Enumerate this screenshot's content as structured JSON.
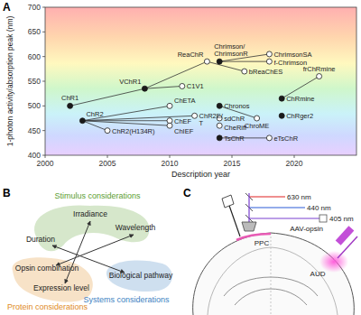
{
  "chart_data": {
    "type": "scatter",
    "panel_label": "A",
    "x_label": "Description year",
    "y_label": "1-photon activity/absorption peak (nm)",
    "xlim": [
      2000,
      2025
    ],
    "xticks": [
      2000,
      2005,
      2010,
      2015,
      2020
    ],
    "ylim": [
      400,
      700
    ],
    "yticks": [
      400,
      450,
      500,
      550,
      600,
      650,
      700
    ],
    "points": [
      {
        "label": "ChR1",
        "x": 2002,
        "y": 500,
        "marker": "filled"
      },
      {
        "label": "ChR2",
        "x": 2003,
        "y": 470,
        "marker": "filled"
      },
      {
        "label": "ChR2(H134R)",
        "x": 2005,
        "y": 450,
        "marker": "open"
      },
      {
        "label": "VChR1",
        "x": 2008,
        "y": 535,
        "marker": "filled"
      },
      {
        "label": "ChETA",
        "x": 2010,
        "y": 500,
        "marker": "open"
      },
      {
        "label": "C1V1",
        "x": 2011,
        "y": 540,
        "marker": "open"
      },
      {
        "label": "ChEF",
        "x": 2010,
        "y": 470,
        "marker": "open"
      },
      {
        "label": "ChIEF",
        "x": 2010,
        "y": 460,
        "marker": "open"
      },
      {
        "label": "ChR2E/T",
        "x": 2012,
        "y": 480,
        "marker": "open"
      },
      {
        "label": "ReaChR",
        "x": 2013,
        "y": 590,
        "marker": "open"
      },
      {
        "label": "Chrimson/ChrimsonR",
        "x": 2014,
        "y": 590,
        "marker": "filled"
      },
      {
        "label": "bReaChES",
        "x": 2016,
        "y": 570,
        "marker": "open"
      },
      {
        "label": "ChrimsonSA",
        "x": 2018,
        "y": 605,
        "marker": "open"
      },
      {
        "label": "f-Chrimson",
        "x": 2018,
        "y": 590,
        "marker": "open"
      },
      {
        "label": "Chronos",
        "x": 2014,
        "y": 500,
        "marker": "filled"
      },
      {
        "label": "sdChR",
        "x": 2014,
        "y": 475,
        "marker": "open"
      },
      {
        "label": "CheRiff",
        "x": 2014,
        "y": 460,
        "marker": "open"
      },
      {
        "label": "TsChR",
        "x": 2014,
        "y": 435,
        "marker": "filled"
      },
      {
        "label": "ChroME",
        "x": 2017,
        "y": 475,
        "marker": "open"
      },
      {
        "label": "eTsChR",
        "x": 2018,
        "y": 435,
        "marker": "open"
      },
      {
        "label": "ChRmine",
        "x": 2019,
        "y": 515,
        "marker": "filled"
      },
      {
        "label": "ChRger2",
        "x": 2019,
        "y": 480,
        "marker": "filled"
      },
      {
        "label": "frChRmine",
        "x": 2022,
        "y": 560,
        "marker": "open"
      }
    ],
    "links": [
      [
        "ChR1",
        "VChR1"
      ],
      [
        "VChR1",
        "C1V1"
      ],
      [
        "VChR1",
        "ReaChR"
      ],
      [
        "ReaChR",
        "bReaChES"
      ],
      [
        "Chrimson/ChrimsonR",
        "ChrimsonSA"
      ],
      [
        "Chrimson/ChrimsonR",
        "f-Chrimson"
      ],
      [
        "ChR2",
        "ChR2(H134R)"
      ],
      [
        "ChR2",
        "ChETA"
      ],
      [
        "ChR2",
        "ChEF"
      ],
      [
        "ChR2",
        "ChIEF"
      ],
      [
        "ChR2",
        "ChR2E/T"
      ],
      [
        "Chronos",
        "ChroME"
      ],
      [
        "TsChR",
        "eTsChR"
      ],
      [
        "ChRmine",
        "frChRmine"
      ]
    ]
  },
  "panel_b": {
    "label": "B",
    "groups": [
      {
        "title": "Stimulus considerations",
        "color": "#5c9e31",
        "items": [
          "Irradiance",
          "Duration",
          "Wavelength"
        ]
      },
      {
        "title": "Protein considerations",
        "color": "#e08a1e",
        "items": [
          "Opsin combination",
          "Expression level"
        ]
      },
      {
        "title": "Systems considerations",
        "color": "#3d7fc1",
        "items": [
          "Biological pathway"
        ]
      }
    ]
  },
  "panel_c": {
    "label": "C",
    "wavelengths": [
      "630 nm",
      "440 nm",
      "405 nm"
    ],
    "regions": [
      "PPC",
      "AUD"
    ],
    "injection": "AAV-opsin"
  }
}
